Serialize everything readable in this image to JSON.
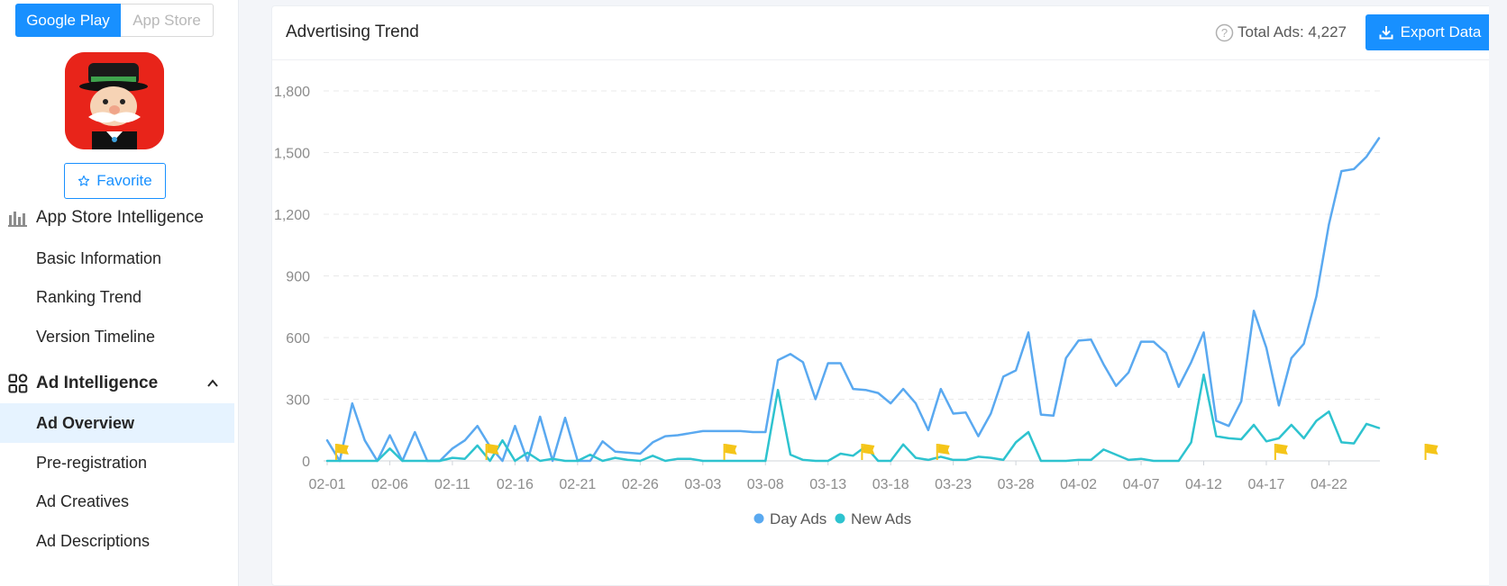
{
  "store_toggle": {
    "google_play": "Google Play",
    "app_store": "App Store"
  },
  "favorite": {
    "label": "Favorite"
  },
  "nav": {
    "group_app_store": "App Store Intelligence",
    "basic_information": "Basic Information",
    "ranking_trend": "Ranking Trend",
    "version_timeline": "Version Timeline",
    "group_ad": "Ad Intelligence",
    "ad_overview": "Ad Overview",
    "pre_registration": "Pre-registration",
    "ad_creatives": "Ad Creatives",
    "ad_descriptions": "Ad Descriptions"
  },
  "card": {
    "title": "Advertising Trend",
    "total_label": "Total Ads: 4,227",
    "export_label": "Export Data"
  },
  "colors": {
    "accent": "#1890ff",
    "day_ads": "#5aa9f0",
    "new_ads": "#2ec3cf",
    "flag": "#f5c518"
  },
  "chart_data": {
    "type": "line",
    "ylim": [
      0,
      1800
    ],
    "yticks": [
      "0",
      "300",
      "600",
      "900",
      "1,200",
      "1,500",
      "1,800"
    ],
    "xtick_labels": [
      "02-01",
      "02-06",
      "02-11",
      "02-16",
      "02-21",
      "02-26",
      "03-03",
      "03-08",
      "03-13",
      "03-18",
      "03-23",
      "03-28",
      "04-02",
      "04-07",
      "04-12",
      "04-17",
      "04-22"
    ],
    "legend": [
      "Day Ads",
      "New Ads"
    ],
    "flag_days": [
      1,
      13,
      32,
      43,
      49,
      76,
      88
    ],
    "series": [
      {
        "name": "Day Ads",
        "values": [
          100,
          0,
          280,
          100,
          0,
          125,
          0,
          140,
          0,
          0,
          60,
          100,
          170,
          70,
          0,
          170,
          0,
          215,
          0,
          210,
          0,
          0,
          95,
          45,
          40,
          35,
          90,
          120,
          125,
          135,
          145,
          145,
          145,
          145,
          140,
          140,
          490,
          520,
          480,
          300,
          475,
          475,
          350,
          345,
          330,
          280,
          350,
          280,
          150,
          350,
          230,
          235,
          120,
          230,
          410,
          440,
          625,
          225,
          220,
          500,
          585,
          590,
          470,
          365,
          430,
          580,
          580,
          525,
          360,
          480,
          625,
          195,
          170,
          290,
          730,
          550,
          270,
          500,
          570,
          800,
          1150,
          1410,
          1420,
          1480,
          1570
        ]
      },
      {
        "name": "New Ads",
        "values": [
          0,
          0,
          0,
          0,
          0,
          60,
          0,
          0,
          0,
          0,
          15,
          10,
          75,
          0,
          100,
          0,
          40,
          0,
          10,
          0,
          0,
          30,
          0,
          15,
          5,
          0,
          25,
          0,
          10,
          10,
          0,
          0,
          0,
          0,
          0,
          0,
          345,
          30,
          5,
          0,
          0,
          35,
          25,
          70,
          0,
          0,
          80,
          15,
          5,
          20,
          5,
          5,
          20,
          15,
          5,
          90,
          140,
          0,
          0,
          0,
          5,
          5,
          55,
          30,
          5,
          10,
          0,
          0,
          0,
          90,
          420,
          120,
          110,
          105,
          175,
          95,
          110,
          175,
          110,
          195,
          240,
          90,
          85,
          180,
          160
        ]
      }
    ]
  }
}
